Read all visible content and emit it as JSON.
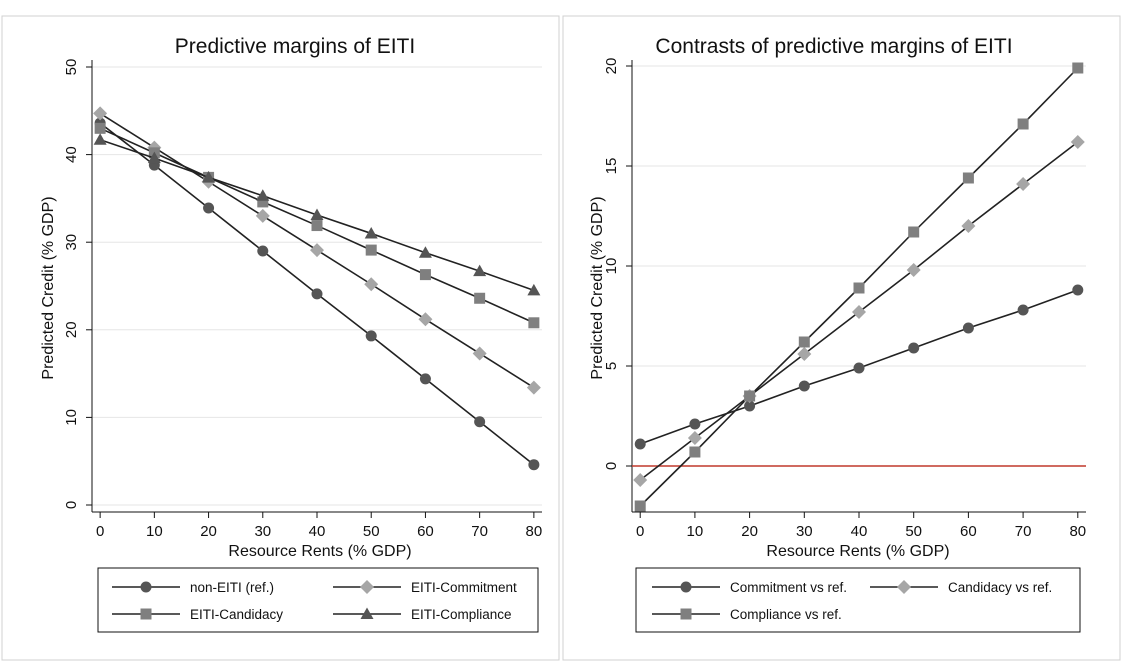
{
  "colors": {
    "dark": "#555555",
    "light": "#a6a6a6",
    "medium": "#7f7f7f",
    "line": "#222222",
    "reference": "#c0392b"
  },
  "chart_data": [
    {
      "type": "line",
      "title": "Predictive margins of EITI",
      "xlabel": "Resource Rents (% GDP)",
      "ylabel": "Predicted Credit (% GDP)",
      "x": [
        0,
        10,
        20,
        30,
        40,
        50,
        60,
        70,
        80
      ],
      "xticks": [
        0,
        10,
        20,
        30,
        40,
        50,
        60,
        70,
        80
      ],
      "yticks": [
        0,
        10,
        20,
        30,
        40,
        50
      ],
      "xlim": [
        -1.5,
        81.5
      ],
      "ylim": [
        -0.8,
        50.8
      ],
      "grid": true,
      "legend_position": "bottom",
      "series": [
        {
          "name": "non-EITI (ref.)",
          "marker": "circle",
          "color": "#555555",
          "values": [
            43.6,
            38.8,
            33.9,
            29.0,
            24.1,
            19.3,
            14.4,
            9.5,
            4.6
          ]
        },
        {
          "name": "EITI-Commitment",
          "marker": "diamond",
          "color": "#a6a6a6",
          "values": [
            44.7,
            40.8,
            36.9,
            33.0,
            29.1,
            25.2,
            21.2,
            17.3,
            13.4
          ]
        },
        {
          "name": "EITI-Candidacy",
          "marker": "square",
          "color": "#7f7f7f",
          "values": [
            43.0,
            40.2,
            37.4,
            34.6,
            31.9,
            29.1,
            26.3,
            23.6,
            20.8
          ]
        },
        {
          "name": "EITI-Compliance",
          "marker": "triangle",
          "color": "#555555",
          "values": [
            41.7,
            39.6,
            37.4,
            35.3,
            33.1,
            31.0,
            28.8,
            26.7,
            24.5
          ]
        }
      ]
    },
    {
      "type": "line",
      "title": "Contrasts of predictive margins of EITI",
      "xlabel": "Resource Rents (% GDP)",
      "ylabel": "Predicted Credit (% GDP)",
      "x": [
        0,
        10,
        20,
        30,
        40,
        50,
        60,
        70,
        80
      ],
      "xticks": [
        0,
        10,
        20,
        30,
        40,
        50,
        60,
        70,
        80
      ],
      "yticks": [
        0,
        5,
        10,
        15,
        20
      ],
      "xlim": [
        -1.5,
        81.5
      ],
      "ylim": [
        -2.3,
        20.3
      ],
      "grid": true,
      "reference_line": {
        "y": 0,
        "color": "#c0392b"
      },
      "legend_position": "bottom",
      "series": [
        {
          "name": "Commitment vs ref.",
          "marker": "circle",
          "color": "#555555",
          "values": [
            1.1,
            2.1,
            3.0,
            4.0,
            4.9,
            5.9,
            6.9,
            7.8,
            8.8
          ]
        },
        {
          "name": "Candidacy vs ref.",
          "marker": "diamond",
          "color": "#a6a6a6",
          "values": [
            -0.7,
            1.4,
            3.5,
            5.6,
            7.7,
            9.8,
            12.0,
            14.1,
            16.2
          ]
        },
        {
          "name": "Compliance vs ref.",
          "marker": "square",
          "color": "#7f7f7f",
          "values": [
            -2.0,
            0.7,
            3.5,
            6.2,
            8.9,
            11.7,
            14.4,
            17.1,
            19.9
          ]
        }
      ]
    }
  ]
}
